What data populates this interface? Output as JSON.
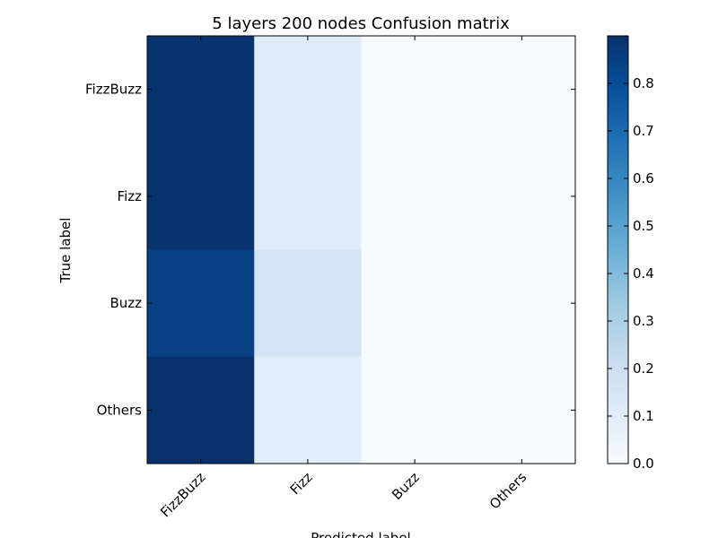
{
  "chart_data": {
    "type": "heatmap",
    "title": "5 layers 200 nodes Confusion matrix",
    "xlabel": "Predicted label",
    "ylabel": "True label",
    "x_categories": [
      "FizzBuzz",
      "Fizz",
      "Buzz",
      "Others"
    ],
    "y_categories": [
      "FizzBuzz",
      "Fizz",
      "Buzz",
      "Others"
    ],
    "values": [
      [
        0.89,
        0.11,
        0.0,
        0.0
      ],
      [
        0.89,
        0.11,
        0.0,
        0.0
      ],
      [
        0.84,
        0.16,
        0.0,
        0.0
      ],
      [
        0.9,
        0.1,
        0.0,
        0.0
      ]
    ],
    "colormap": "Blues",
    "vmin": 0.0,
    "vmax": 0.9,
    "colorbar_ticks": [
      "0.0",
      "0.1",
      "0.2",
      "0.3",
      "0.4",
      "0.5",
      "0.6",
      "0.7",
      "0.8"
    ],
    "colorbar_tick_values": [
      0.0,
      0.1,
      0.2,
      0.3,
      0.4,
      0.5,
      0.6,
      0.7,
      0.8
    ],
    "colors": {
      "low": "#f7fbff",
      "high": "#08306b"
    }
  }
}
